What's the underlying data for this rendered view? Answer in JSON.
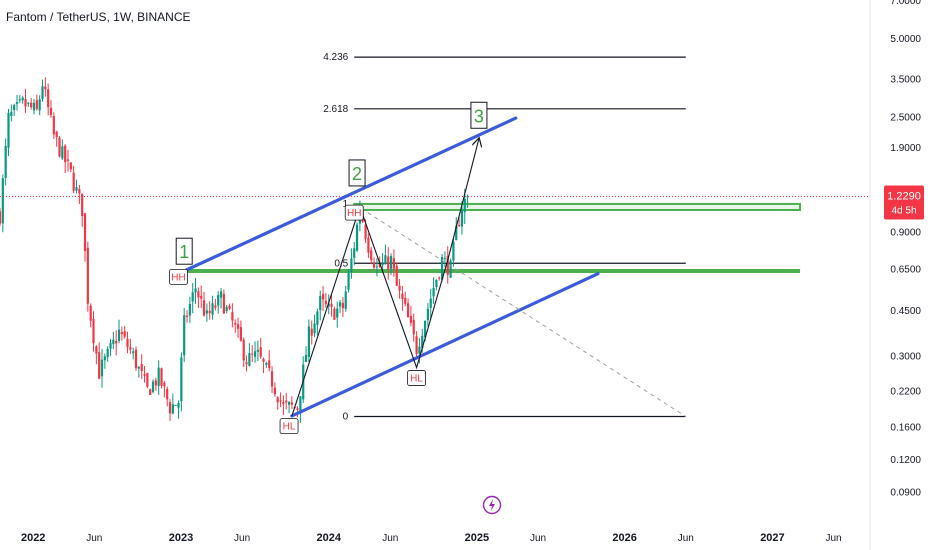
{
  "header": {
    "symbol_title": "Fantom / TetherUS, 1W, BINANCE"
  },
  "colors": {
    "up": "#089981",
    "down": "#f23645",
    "channel": "#3b5bdb",
    "zone": "#4caf50",
    "fib": "#131722",
    "count": "#43a047",
    "price_line": "#f23645",
    "projection": "#9e9e9e"
  },
  "price_tag": {
    "value": "1.2290",
    "countdown": "4d 5h"
  },
  "event_icon": "lightning-icon",
  "chart_data": {
    "type": "candlestick",
    "symbol": "Fantom / TetherUS",
    "interval": "1W",
    "exchange": "BINANCE",
    "y_scale": "log",
    "ylim": [
      0.07,
      7.0
    ],
    "xlim": [
      "2021-10-11",
      "2027-08-30"
    ],
    "y_ticks": [
      "7.0000",
      "5.0000",
      "3.5000",
      "2.5000",
      "1.9000",
      "1.2290",
      "0.9000",
      "0.6500",
      "0.4500",
      "0.3000",
      "0.2200",
      "0.1600",
      "0.1200",
      "0.0900"
    ],
    "x_ticks": [
      {
        "date": "2022-01-01",
        "label": "2022"
      },
      {
        "date": "2022-06-01",
        "label": "Jun"
      },
      {
        "date": "2023-01-01",
        "label": "2023"
      },
      {
        "date": "2023-06-01",
        "label": "Jun"
      },
      {
        "date": "2024-01-01",
        "label": "2024"
      },
      {
        "date": "2024-06-01",
        "label": "Jun"
      },
      {
        "date": "2025-01-01",
        "label": "2025"
      },
      {
        "date": "2025-06-01",
        "label": "Jun"
      },
      {
        "date": "2026-01-01",
        "label": "2026"
      },
      {
        "date": "2026-06-01",
        "label": "Jun"
      },
      {
        "date": "2027-01-01",
        "label": "2027"
      },
      {
        "date": "2027-06-01",
        "label": "Jun"
      }
    ],
    "close_path": [
      [
        "2021-10-11",
        1.05
      ],
      [
        "2021-11-01",
        2.45
      ],
      [
        "2021-12-06",
        2.8
      ],
      [
        "2022-01-10",
        2.6
      ],
      [
        "2022-01-24",
        3.35
      ],
      [
        "2022-02-21",
        2.1
      ],
      [
        "2022-04-04",
        1.5
      ],
      [
        "2022-05-02",
        1.1
      ],
      [
        "2022-05-16",
        0.5
      ],
      [
        "2022-06-13",
        0.26
      ],
      [
        "2022-07-04",
        0.3
      ],
      [
        "2022-08-01",
        0.37
      ],
      [
        "2022-09-05",
        0.3
      ],
      [
        "2022-10-10",
        0.22
      ],
      [
        "2022-11-07",
        0.25
      ],
      [
        "2022-12-05",
        0.19
      ],
      [
        "2022-12-26",
        0.2
      ],
      [
        "2023-01-09",
        0.4
      ],
      [
        "2023-02-06",
        0.55
      ],
      [
        "2023-03-06",
        0.42
      ],
      [
        "2023-04-10",
        0.5
      ],
      [
        "2023-05-15",
        0.38
      ],
      [
        "2023-06-12",
        0.29
      ],
      [
        "2023-07-10",
        0.3
      ],
      [
        "2023-08-14",
        0.24
      ],
      [
        "2023-09-11",
        0.19
      ],
      [
        "2023-10-16",
        0.19
      ],
      [
        "2023-11-13",
        0.36
      ],
      [
        "2023-12-11",
        0.48
      ],
      [
        "2024-01-08",
        0.44
      ],
      [
        "2024-02-05",
        0.46
      ],
      [
        "2024-03-04",
        0.8
      ],
      [
        "2024-03-18",
        1.12
      ],
      [
        "2024-04-08",
        0.8
      ],
      [
        "2024-04-29",
        0.65
      ],
      [
        "2024-06-03",
        0.7
      ],
      [
        "2024-06-17",
        0.55
      ],
      [
        "2024-07-08",
        0.45
      ],
      [
        "2024-08-05",
        0.32
      ],
      [
        "2024-08-26",
        0.42
      ],
      [
        "2024-09-16",
        0.55
      ],
      [
        "2024-10-07",
        0.7
      ],
      [
        "2024-10-28",
        0.65
      ],
      [
        "2024-11-11",
        0.9
      ],
      [
        "2024-11-25",
        1.13
      ],
      [
        "2024-12-09",
        1.229
      ]
    ],
    "last_price": 1.229,
    "fib_levels": [
      {
        "label": "4.236",
        "value": 4.22
      },
      {
        "label": "2.618",
        "value": 2.67
      },
      {
        "label": "1",
        "value": 1.15
      },
      {
        "label": "0.5",
        "value": 0.68
      },
      {
        "label": "0",
        "value": 0.175
      }
    ],
    "zones": [
      {
        "low": 1.09,
        "high": 1.15
      },
      {
        "value": 0.635
      }
    ],
    "channel": {
      "upper": [
        [
          "2023-01-09",
          0.635
        ],
        [
          "2025-04-07",
          2.46
        ]
      ],
      "lower": [
        [
          "2023-10-02",
          0.176
        ],
        [
          "2025-10-27",
          0.62
        ]
      ]
    },
    "swing_path": [
      [
        "2023-10-02",
        0.176
      ],
      [
        "2024-03-18",
        1.12
      ],
      [
        "2024-08-05",
        0.27
      ],
      [
        "2024-10-21",
        0.7
      ],
      [
        "2025-01-06",
        2.05
      ]
    ],
    "projection_line": [
      [
        "2024-03-04",
        1.15
      ],
      [
        "2026-06-01",
        0.175
      ]
    ],
    "wave_counts": [
      {
        "label": "1",
        "date": "2023-01-09",
        "value": 0.75
      },
      {
        "label": "2",
        "date": "2024-03-11",
        "value": 1.5
      },
      {
        "label": "3",
        "date": "2025-01-06",
        "value": 2.5
      }
    ],
    "pivots": [
      {
        "label": "HH",
        "date": "2022-12-26",
        "value": 0.6
      },
      {
        "label": "HH",
        "date": "2024-03-04",
        "value": 1.06
      },
      {
        "label": "HL",
        "date": "2023-09-25",
        "value": 0.16
      },
      {
        "label": "HL",
        "date": "2024-08-05",
        "value": 0.245
      }
    ]
  }
}
